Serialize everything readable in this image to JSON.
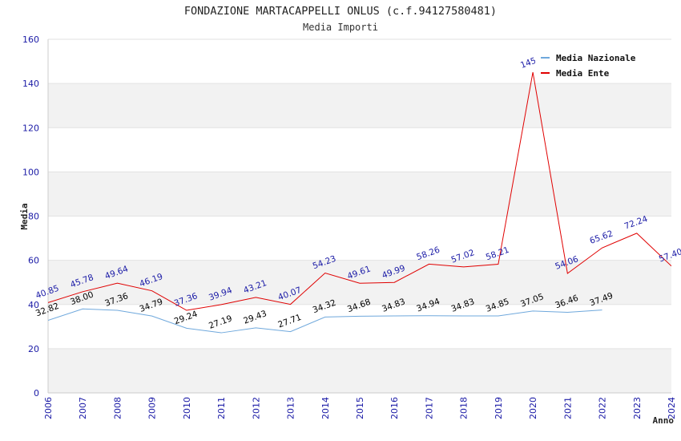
{
  "chart_data": {
    "type": "line",
    "title": "FONDAZIONE MARTACAPPELLI ONLUS (c.f.94127580481)",
    "subtitle": "Media Importi",
    "xlabel": "Anno",
    "ylabel": "Media",
    "ylim": [
      0,
      160
    ],
    "yticks": [
      0,
      20,
      40,
      60,
      80,
      100,
      120,
      140,
      160
    ],
    "xlim": [
      2006,
      2024
    ],
    "x": [
      2006,
      2007,
      2008,
      2009,
      2010,
      2011,
      2012,
      2013,
      2014,
      2015,
      2016,
      2017,
      2018,
      2019,
      2020,
      2021,
      2022,
      2023,
      2024
    ],
    "grid": true,
    "legend_position": "top-right",
    "series": [
      {
        "name": "Media Nazionale",
        "color": "#6fa8dc",
        "label_color": "#000000",
        "x": [
          2006,
          2007,
          2008,
          2009,
          2010,
          2011,
          2012,
          2013,
          2014,
          2015,
          2016,
          2017,
          2018,
          2019,
          2020,
          2021,
          2022
        ],
        "values": [
          32.82,
          38.0,
          37.36,
          34.79,
          29.24,
          27.19,
          29.43,
          27.71,
          34.32,
          34.68,
          34.83,
          34.94,
          34.83,
          34.85,
          37.05,
          36.46,
          37.49
        ],
        "labels": [
          "32.82",
          "38.00",
          "37.36",
          "34.79",
          "29.24",
          "27.19",
          "29.43",
          "27.71",
          "34.32",
          "34.68",
          "34.83",
          "34.94",
          "34.83",
          "34.85",
          "37.05",
          "36.46",
          "37.49"
        ]
      },
      {
        "name": "Media Ente",
        "color": "#e00000",
        "label_color": "#1a1aa6",
        "x": [
          2006,
          2007,
          2008,
          2009,
          2010,
          2011,
          2012,
          2013,
          2014,
          2015,
          2016,
          2017,
          2018,
          2019,
          2020,
          2021,
          2022,
          2023,
          2024
        ],
        "values": [
          40.85,
          45.78,
          49.64,
          46.19,
          37.36,
          39.94,
          43.21,
          40.07,
          54.23,
          49.61,
          49.99,
          58.26,
          57.02,
          58.21,
          145.1,
          54.06,
          65.62,
          72.24,
          57.4
        ],
        "labels": [
          "40.85",
          "45.78",
          "49.64",
          "46.19",
          "37.36",
          "39.94",
          "43.21",
          "40.07",
          "54.23",
          "49.61",
          "49.99",
          "58.26",
          "57.02",
          "58.21",
          "145.1",
          "54.06",
          "65.62",
          "72.24",
          "57.40"
        ]
      }
    ]
  }
}
